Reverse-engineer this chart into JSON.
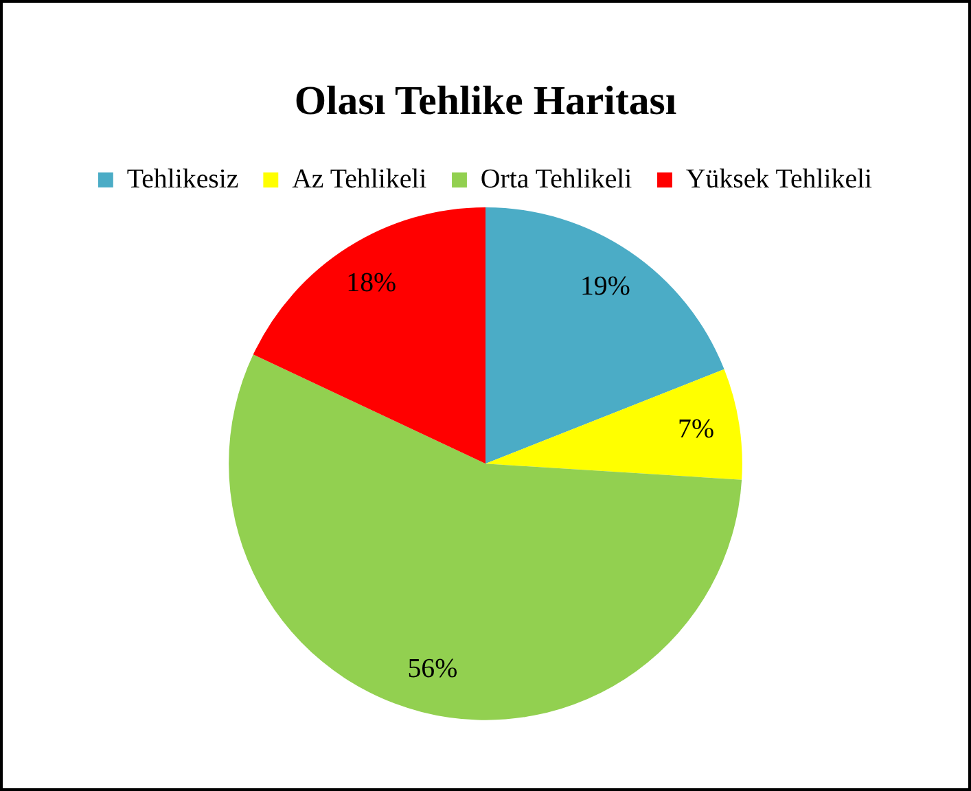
{
  "chart_data": {
    "type": "pie",
    "title": "Olası Tehlike Haritası",
    "categories": [
      "Tehlikesiz",
      "Az Tehlikeli",
      "Orta Tehlikeli",
      "Yüksek Tehlikeli"
    ],
    "values": [
      19,
      7,
      56,
      18
    ],
    "colors": [
      "#4bacc6",
      "#ffff00",
      "#92d050",
      "#ff0000"
    ],
    "value_labels": [
      "19%",
      "7%",
      "56%",
      "18%"
    ],
    "legend": "top"
  }
}
